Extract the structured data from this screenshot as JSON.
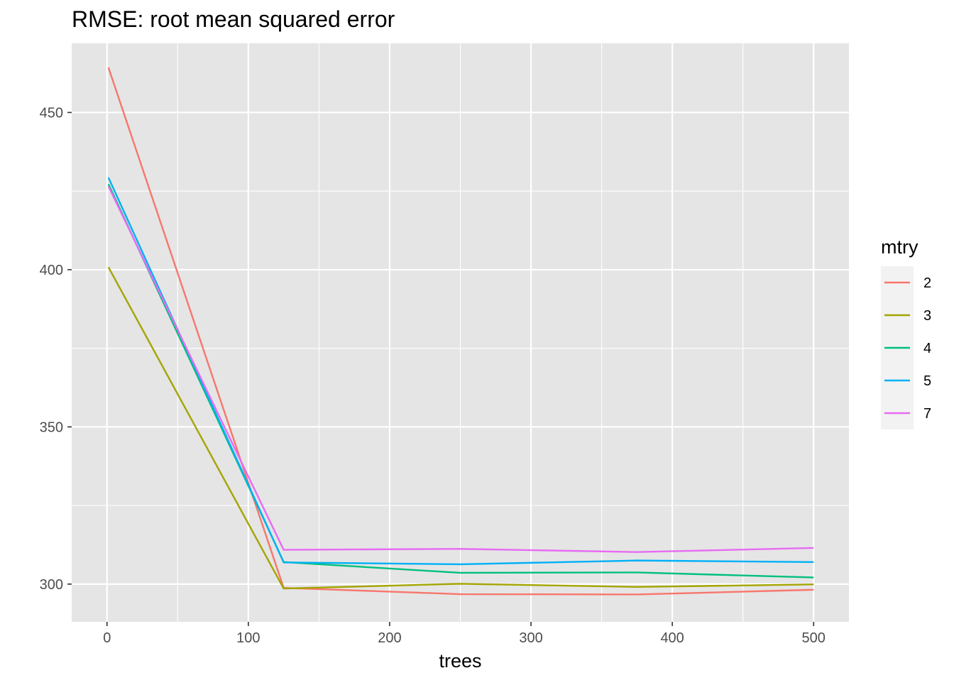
{
  "chart_data": {
    "type": "line",
    "title": "RMSE: root mean squared error",
    "xlabel": "trees",
    "ylabel": "",
    "xlim": [
      -25,
      525
    ],
    "ylim": [
      288,
      472
    ],
    "x_ticks": [
      0,
      100,
      200,
      300,
      400,
      500
    ],
    "y_ticks": [
      300,
      350,
      400,
      450
    ],
    "x_tick_labels": [
      "0",
      "100",
      "200",
      "300",
      "400",
      "500"
    ],
    "y_tick_labels": [
      "300",
      "350",
      "400",
      "450"
    ],
    "grid": true,
    "background": "#e5e5e5",
    "legend": {
      "title": "mtry",
      "placement": "right"
    },
    "x": [
      1,
      125,
      250,
      375,
      500
    ],
    "series": [
      {
        "name": "2",
        "color": "#f8766d",
        "values": [
          464.3,
          298.8,
          296.8,
          296.7,
          298.2
        ]
      },
      {
        "name": "3",
        "color": "#a3a500",
        "values": [
          400.8,
          298.6,
          300.1,
          299.1,
          299.9
        ]
      },
      {
        "name": "4",
        "color": "#00bf7d",
        "values": [
          427.2,
          307.0,
          303.6,
          303.7,
          302.1
        ]
      },
      {
        "name": "5",
        "color": "#00b0f6",
        "values": [
          429.3,
          306.9,
          306.3,
          307.5,
          307.0
        ]
      },
      {
        "name": "7",
        "color": "#e76bf3",
        "values": [
          426.5,
          310.9,
          311.2,
          310.2,
          311.5
        ]
      }
    ]
  }
}
